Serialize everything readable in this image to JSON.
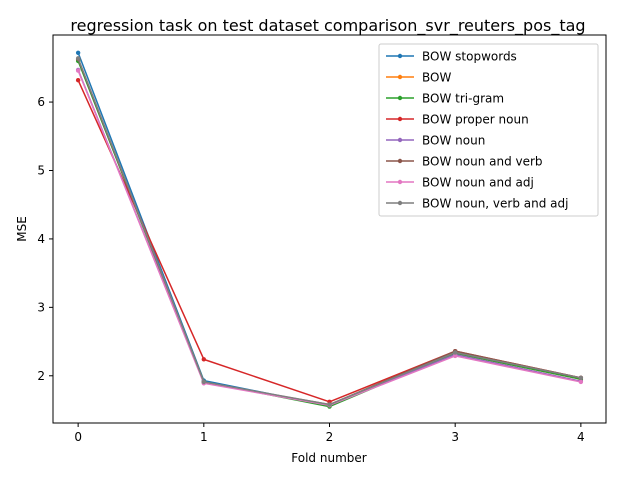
{
  "chart_data": {
    "type": "line",
    "title": "regression task on test dataset comparison_svr_reuters_pos_tag",
    "xlabel": "Fold number",
    "ylabel": "MSE",
    "x": [
      0,
      1,
      2,
      3,
      4
    ],
    "xticks": [
      "0",
      "1",
      "2",
      "3",
      "4"
    ],
    "yticks": [
      "2",
      "3",
      "4",
      "5",
      "6"
    ],
    "xlim": [
      -0.2,
      4.2
    ],
    "ylim": [
      1.31,
      6.98
    ],
    "grid": false,
    "legend_position": "top-right",
    "series": [
      {
        "name": "BOW stopwords",
        "color": "#1f77b4",
        "values": [
          6.72,
          1.93,
          1.56,
          2.33,
          1.96
        ]
      },
      {
        "name": "BOW",
        "color": "#ff7f0e",
        "values": [
          6.62,
          1.91,
          1.56,
          2.33,
          1.95
        ]
      },
      {
        "name": "BOW tri-gram",
        "color": "#2ca02c",
        "values": [
          6.6,
          1.91,
          1.55,
          2.33,
          1.95
        ]
      },
      {
        "name": "BOW proper noun",
        "color": "#d62728",
        "values": [
          6.32,
          2.24,
          1.62,
          2.36,
          1.97
        ]
      },
      {
        "name": "BOW noun",
        "color": "#9467bd",
        "values": [
          6.47,
          1.9,
          1.57,
          2.31,
          1.92
        ]
      },
      {
        "name": "BOW noun and verb",
        "color": "#8c564b",
        "values": [
          6.63,
          1.9,
          1.58,
          2.36,
          1.97
        ]
      },
      {
        "name": "BOW noun and adj",
        "color": "#e377c2",
        "values": [
          6.46,
          1.89,
          1.57,
          2.29,
          1.91
        ]
      },
      {
        "name": "BOW noun, verb and adj",
        "color": "#7f7f7f",
        "values": [
          6.64,
          1.91,
          1.58,
          2.34,
          1.97
        ]
      }
    ]
  }
}
